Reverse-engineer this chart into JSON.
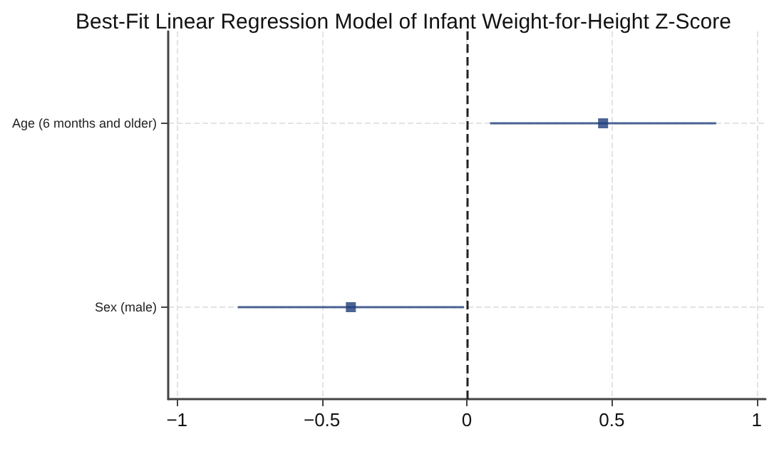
{
  "chart_data": {
    "type": "scatter",
    "orientation": "horizontal",
    "title": "Best-Fit Linear Regression Model of Infant Weight-for-Height Z-Score",
    "categories": [
      "Age (6 months and older)",
      "Sex (male)"
    ],
    "series": [
      {
        "color": "#1f3d7a",
        "values": [
          0.47,
          -0.4
        ],
        "errors": [
          0.39,
          0.39
        ]
      }
    ],
    "xlim": [
      -1.03,
      1.03
    ],
    "xticks": [
      -1,
      -0.5,
      0,
      0.5,
      1
    ],
    "ref_lines": [
      {
        "axis": "x",
        "value": 0,
        "line_style": "dashed",
        "color": "#222222"
      }
    ],
    "grid": true,
    "marker": "square"
  }
}
